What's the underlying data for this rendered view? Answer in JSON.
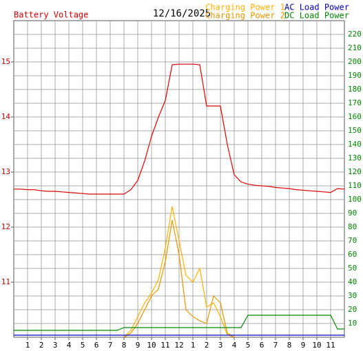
{
  "chart_data": {
    "type": "line",
    "title": "Battery Voltage",
    "subtitle": "12/16/2025",
    "title_color": "#cc0000",
    "x": [
      0,
      0.5,
      1,
      1.5,
      2,
      2.5,
      3,
      3.5,
      4,
      4.5,
      5,
      5.5,
      6,
      6.5,
      7,
      7.5,
      8,
      8.5,
      9,
      9.5,
      10,
      10.5,
      11,
      11.5,
      12,
      12.5,
      13,
      13.5,
      14,
      14.5,
      15,
      15.5,
      16,
      16.5,
      17,
      17.5,
      18,
      18.5,
      19,
      19.5,
      20,
      20.5,
      21,
      21.5,
      22,
      22.5,
      23,
      23.5,
      24
    ],
    "xlim": [
      0,
      24
    ],
    "xticks": [
      {
        "value": 1,
        "label": "1"
      },
      {
        "value": 2,
        "label": "2"
      },
      {
        "value": 3,
        "label": "3"
      },
      {
        "value": 4,
        "label": "4"
      },
      {
        "value": 5,
        "label": "5"
      },
      {
        "value": 6,
        "label": "6"
      },
      {
        "value": 7,
        "label": "7"
      },
      {
        "value": 8,
        "label": "8"
      },
      {
        "value": 9,
        "label": "9"
      },
      {
        "value": 10,
        "label": "10"
      },
      {
        "value": 11,
        "label": "11"
      },
      {
        "value": 12,
        "label": "12"
      },
      {
        "value": 13,
        "label": "1"
      },
      {
        "value": 14,
        "label": "2"
      },
      {
        "value": 15,
        "label": "3"
      },
      {
        "value": 16,
        "label": "4"
      },
      {
        "value": 17,
        "label": "5"
      },
      {
        "value": 18,
        "label": "6"
      },
      {
        "value": 19,
        "label": "7"
      },
      {
        "value": 20,
        "label": "8"
      },
      {
        "value": 21,
        "label": "9"
      },
      {
        "value": 22,
        "label": "10"
      },
      {
        "value": 23,
        "label": "11"
      }
    ],
    "ylim": [
      10,
      15.75
    ],
    "yticks": [
      11,
      12,
      13,
      14,
      15
    ],
    "y_color": "#cc0000",
    "y2lim": [
      0,
      230
    ],
    "y2ticks": [
      10,
      20,
      30,
      40,
      50,
      60,
      70,
      80,
      90,
      100,
      110,
      120,
      130,
      140,
      150,
      160,
      170,
      180,
      190,
      200,
      210,
      220
    ],
    "y2_color": "#008800",
    "grid": true,
    "series": [
      {
        "name": "Battery Voltage",
        "color": "#dd0000",
        "values": [
          12.69,
          12.69,
          12.68,
          12.68,
          12.66,
          12.65,
          12.65,
          12.64,
          12.63,
          12.62,
          12.61,
          12.6,
          12.6,
          12.6,
          12.6,
          12.6,
          12.6,
          12.68,
          12.85,
          13.2,
          13.65,
          14.0,
          14.3,
          14.95,
          14.96,
          14.96,
          14.96,
          14.95,
          14.2,
          14.2,
          14.2,
          13.5,
          12.95,
          12.82,
          12.78,
          12.76,
          12.75,
          12.74,
          12.72,
          12.71,
          12.7,
          12.68,
          12.67,
          12.66,
          12.65,
          12.64,
          12.63,
          12.7,
          12.69
        ]
      },
      {
        "name": "Charging Power 1",
        "color": "#ffb000",
        "axis": "y2",
        "values": [
          null,
          null,
          null,
          null,
          null,
          null,
          null,
          null,
          null,
          null,
          null,
          null,
          null,
          null,
          null,
          null,
          0,
          5,
          15,
          25,
          32,
          42,
          65,
          95,
          70,
          45,
          40,
          50,
          22,
          25,
          15,
          2,
          0,
          null,
          null,
          null,
          null,
          null,
          null,
          null,
          null,
          null,
          null,
          null,
          null,
          null,
          null,
          null,
          null
        ]
      },
      {
        "name": "Charging Power 2",
        "color": "#e69500",
        "axis": "y2",
        "values": [
          null,
          null,
          null,
          null,
          null,
          null,
          null,
          null,
          null,
          null,
          null,
          null,
          null,
          null,
          null,
          null,
          0,
          3,
          10,
          20,
          30,
          35,
          55,
          85,
          60,
          20,
          15,
          12,
          10,
          30,
          25,
          3,
          0,
          null,
          null,
          null,
          null,
          null,
          null,
          null,
          null,
          null,
          null,
          null,
          null,
          null,
          null,
          null,
          null
        ]
      },
      {
        "name": "AC Load Power",
        "color": "#0000cc",
        "axis": "y2",
        "values": [
          1.5,
          1.5,
          1.5,
          1.5,
          1.5,
          1.5,
          1.5,
          1.5,
          1.5,
          1.5,
          1.5,
          1.5,
          1.5,
          1.5,
          1.5,
          1.5,
          1.5,
          1.5,
          1.5,
          1.5,
          1.5,
          1.5,
          1.5,
          1.5,
          1.5,
          1.5,
          1.5,
          1.5,
          1.5,
          1.5,
          1.5,
          1.5,
          1.5,
          1.5,
          1.5,
          1.5,
          1.5,
          1.5,
          1.5,
          1.5,
          1.5,
          1.5,
          1.5,
          1.5,
          1.5,
          1.5,
          1.5,
          1.5,
          1.5
        ]
      },
      {
        "name": "DC Load Power",
        "color": "#008800",
        "axis": "y2",
        "values": [
          5,
          5,
          5,
          5,
          5,
          5,
          5,
          5,
          5,
          5,
          5,
          5,
          5,
          5,
          5,
          5,
          7,
          7,
          7,
          7,
          7,
          7,
          7,
          7,
          7,
          7,
          7,
          7,
          7,
          7,
          7,
          7,
          7,
          7,
          16,
          16,
          16,
          16,
          16,
          16,
          16,
          16,
          16,
          16,
          16,
          16,
          16,
          6,
          6
        ]
      }
    ]
  }
}
